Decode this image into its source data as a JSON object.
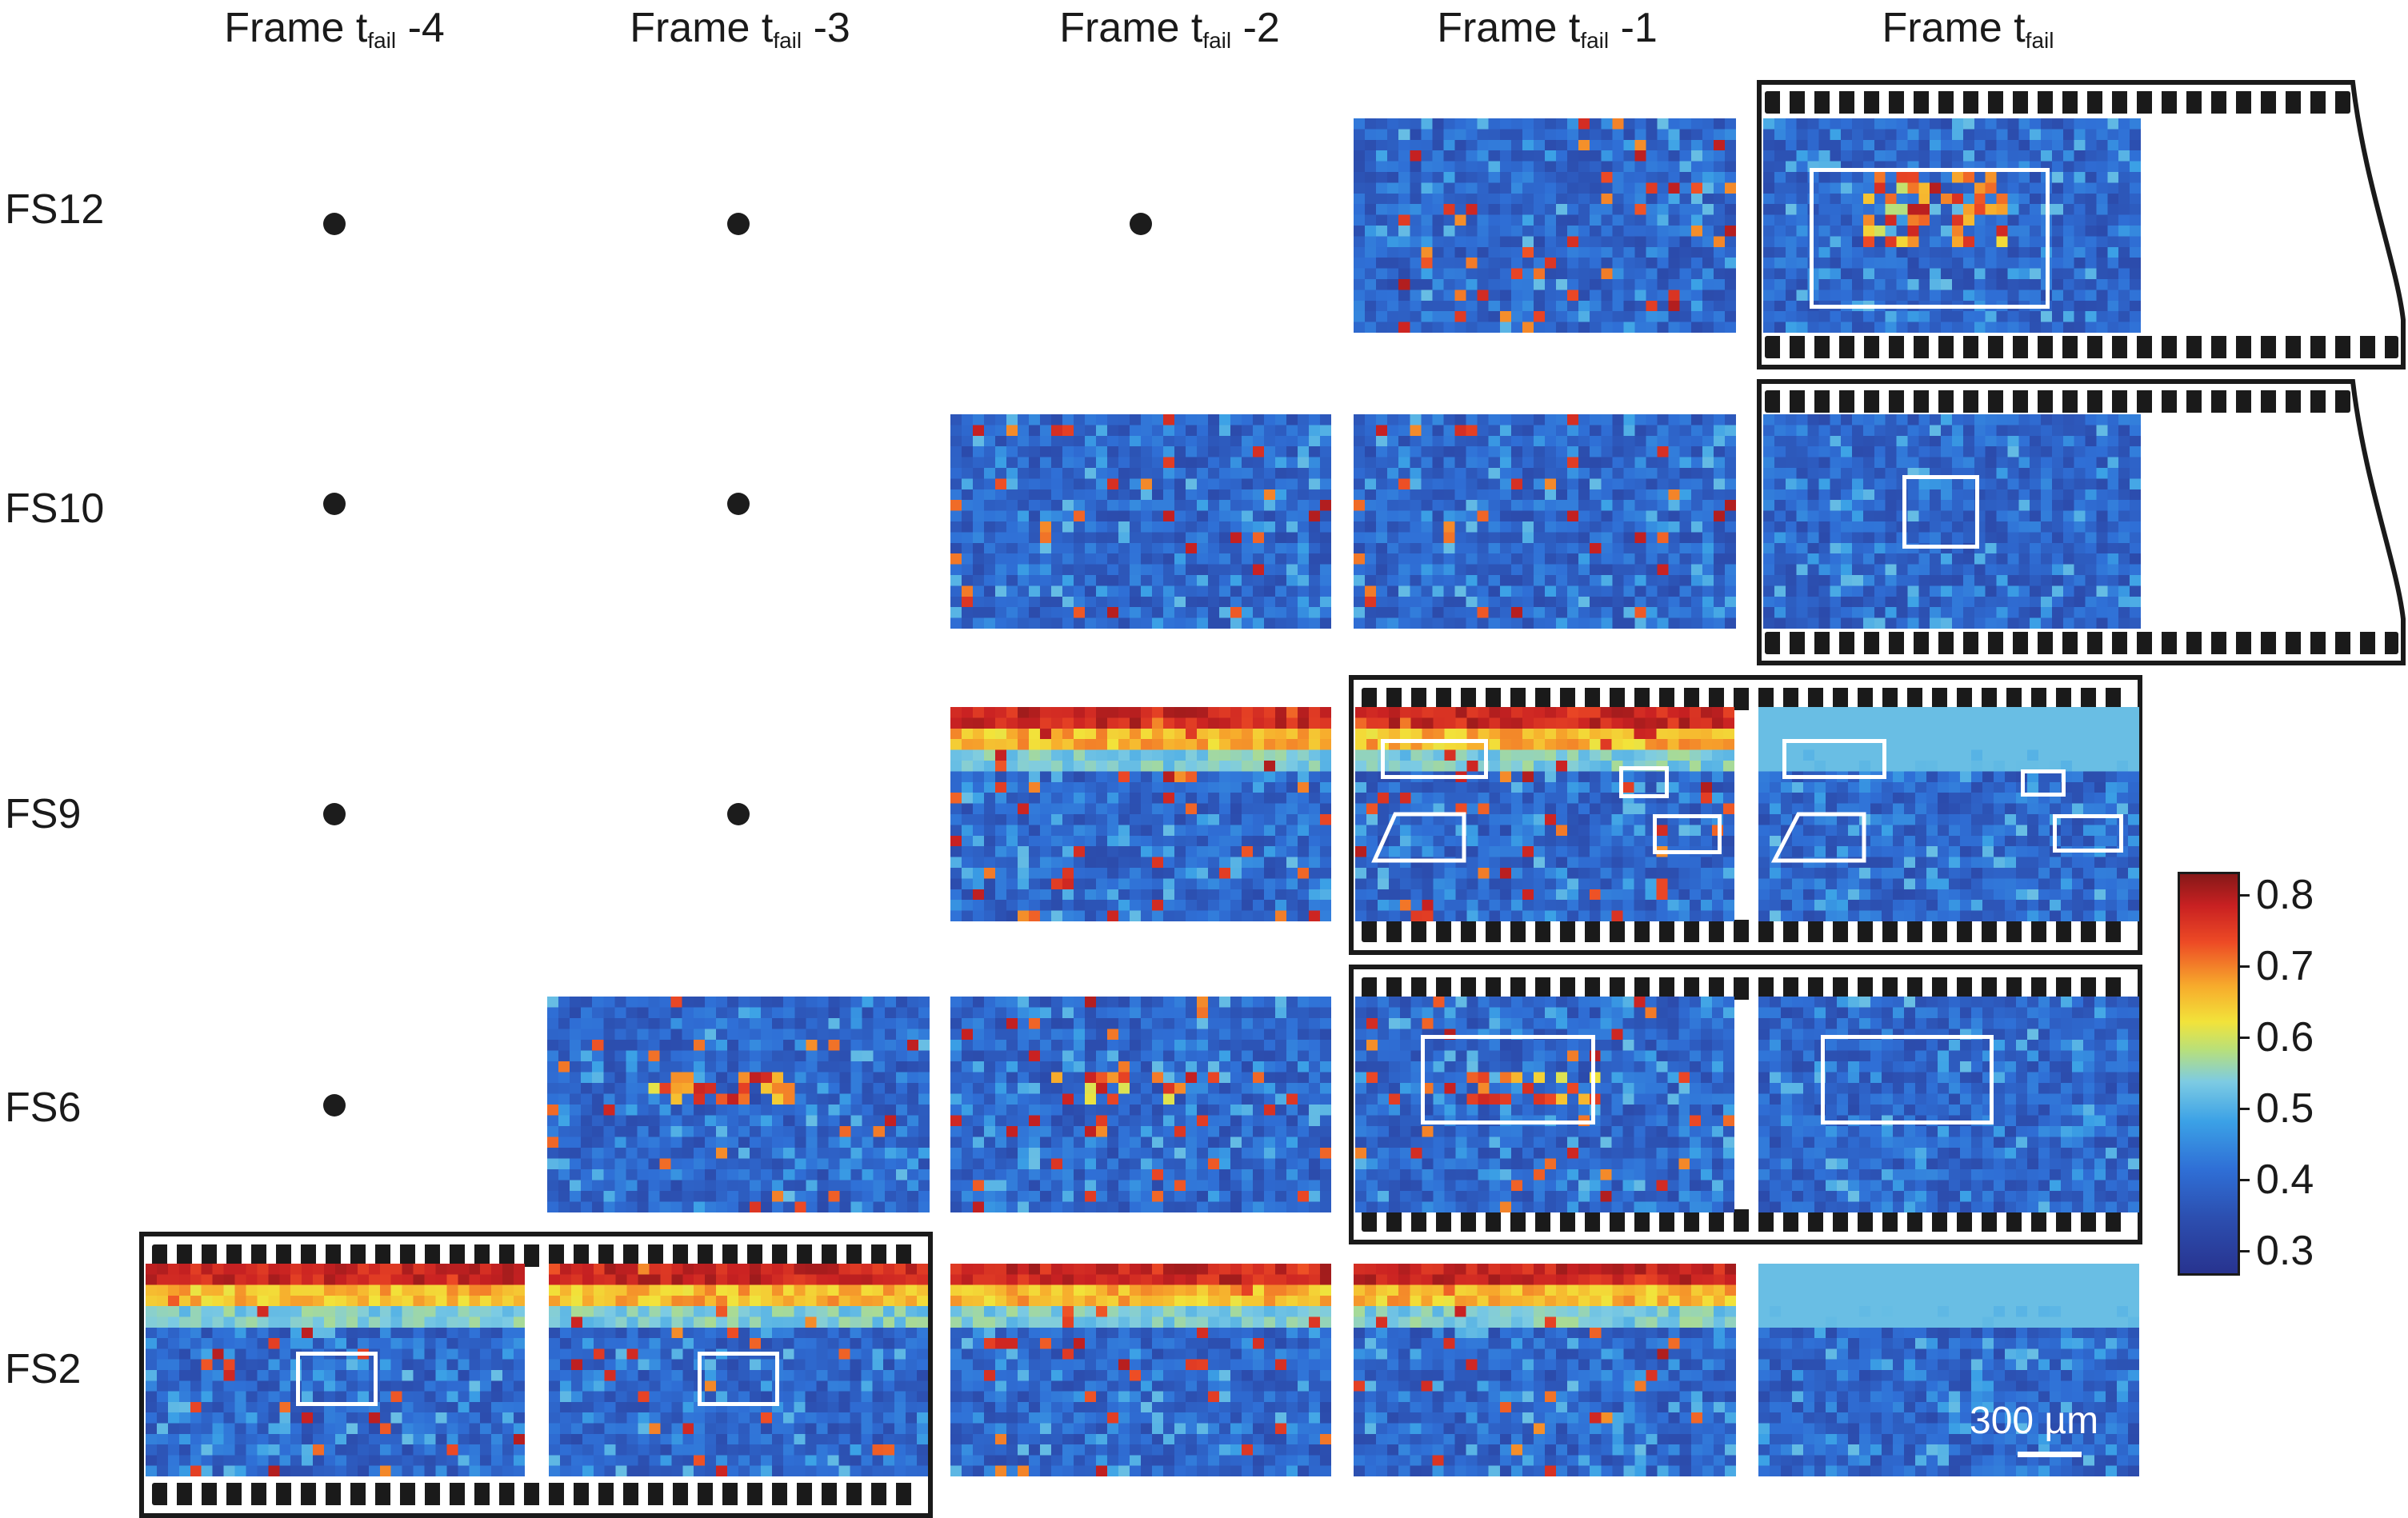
{
  "columns": [
    {
      "main": "Frame t",
      "sub": "fail",
      "suffix": " -4"
    },
    {
      "main": "Frame t",
      "sub": "fail",
      "suffix": " -3"
    },
    {
      "main": "Frame t",
      "sub": "fail",
      "suffix": " -2"
    },
    {
      "main": "Frame t",
      "sub": "fail",
      "suffix": " -1"
    },
    {
      "main": "Frame t",
      "sub": "fail",
      "suffix": ""
    }
  ],
  "rows": [
    "FS12",
    "FS10",
    "FS9",
    "FS6",
    "FS2"
  ],
  "colorbar": {
    "ticks": [
      "0.8",
      "0.7",
      "0.6",
      "0.5",
      "0.4",
      "0.3"
    ],
    "min": 0.27,
    "max": 0.83
  },
  "scale_bar": {
    "label": "300 µm"
  },
  "colors": {
    "ink": "#1a1a1a",
    "roi": "#ffffff"
  }
}
